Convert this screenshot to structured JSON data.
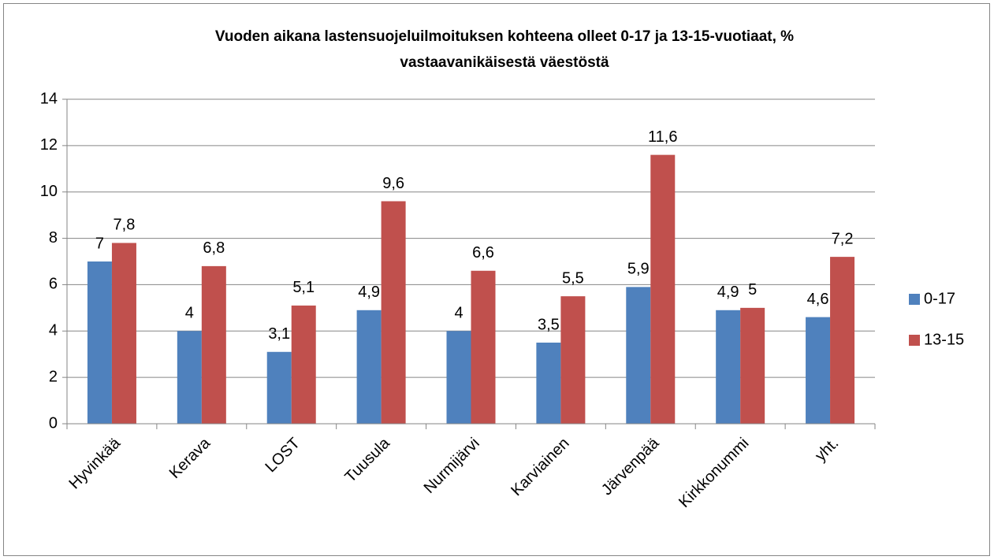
{
  "chart_data": {
    "type": "bar",
    "title": [
      "Vuoden aikana lastensuojeluilmoituksen kohteena olleet 0-17 ja 13-15-vuotiaat, %",
      "vastaavanikäisestä väestöstä"
    ],
    "categories": [
      "Hyvinkää",
      "Kerava",
      "LOST",
      "Tuusula",
      "Nurmijärvi",
      "Karviainen",
      "Järvenpää",
      "Kirkkonummi",
      "yht."
    ],
    "series": [
      {
        "name": "0-17",
        "color": "#4f81bd",
        "values": [
          7,
          4,
          3.1,
          4.9,
          4,
          3.5,
          5.9,
          4.9,
          4.6
        ],
        "value_labels": [
          "7",
          "4",
          "3,1",
          "4,9",
          "4",
          "3,5",
          "5,9",
          "4,9",
          "4,6"
        ]
      },
      {
        "name": "13-15",
        "color": "#c0504d",
        "values": [
          7.8,
          6.8,
          5.1,
          9.6,
          6.6,
          5.5,
          11.6,
          5,
          7.2
        ],
        "value_labels": [
          "7,8",
          "6,8",
          "5,1",
          "9,6",
          "6,6",
          "5,5",
          "11,6",
          "5",
          "7,2"
        ]
      }
    ],
    "ylim": [
      0,
      14
    ],
    "yticks": [
      0,
      2,
      4,
      6,
      8,
      10,
      12,
      14
    ],
    "grid": true,
    "legend": "right"
  }
}
